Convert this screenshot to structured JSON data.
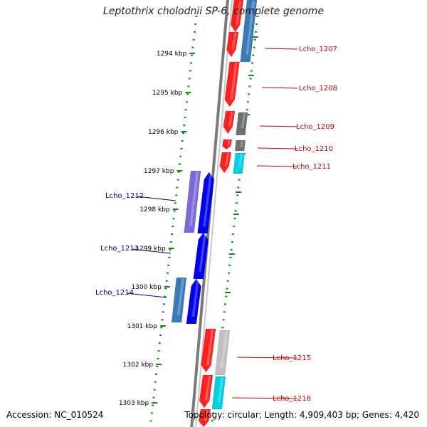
{
  "title": "Leptothrix cholodnii SP-6, complete genome",
  "footer": {
    "accession": "Accession: NC_010524",
    "summary": "Topology: circular; Length: 4,909,403 bp; Genes: 4,420"
  },
  "scale": {
    "color": "#118811",
    "ticks": [
      "1294 kbp",
      "1295 kbp",
      "1296 kbp",
      "1297 kbp",
      "1298 kbp",
      "1299 kbp",
      "1300 kbp",
      "1301 kbp",
      "1302 kbp",
      "1303 kbp"
    ]
  },
  "colors": {
    "backbone": "#7a7a7a",
    "forward_track_dots": "#118811",
    "forward_label": "#cc0000",
    "reverse_label": "#000099"
  },
  "forward_labels": [
    "Lcho_1207",
    "Lcho_1208",
    "Lcho_1209",
    "Lcho_1210",
    "Lcho_1211",
    "Lcho_1215",
    "Lcho_1216"
  ],
  "reverse_labels": [
    "Lcho_1212",
    "Lcho_1213",
    "Lcho_1214"
  ]
}
